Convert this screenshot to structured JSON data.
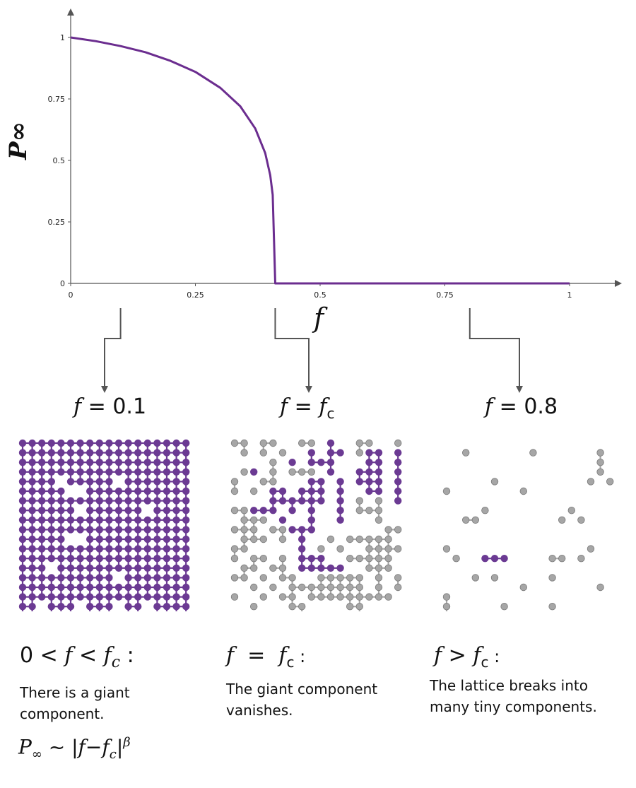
{
  "colors": {
    "curve": "#6b2d8f",
    "giant_node": "#6b3a93",
    "small_node": "#a6a6a6",
    "small_node_stroke": "#7a7a7a",
    "axis": "#555555",
    "arrow": "#555555"
  },
  "chart_data": {
    "type": "line",
    "xlabel": "f",
    "ylabel": "P∞",
    "xlim": [
      0,
      1.1
    ],
    "ylim": [
      0,
      1.05
    ],
    "x_ticks": [
      "0",
      "0.25",
      "0.5",
      "0.75",
      "1"
    ],
    "y_ticks": [
      "0",
      "0.25",
      "0.5",
      "0.75",
      "1"
    ],
    "f_c": 0.41,
    "series": [
      {
        "x": [
          0,
          0.05,
          0.1,
          0.15,
          0.2,
          0.25,
          0.3,
          0.34,
          0.37,
          0.39,
          0.4,
          0.405,
          0.41,
          0.41,
          0.5,
          0.75,
          1.0
        ],
        "y": [
          1.0,
          0.985,
          0.965,
          0.94,
          0.905,
          0.86,
          0.795,
          0.72,
          0.63,
          0.53,
          0.44,
          0.36,
          0.0,
          0.0,
          0.0,
          0.0,
          0.0
        ]
      }
    ]
  },
  "panels": [
    {
      "label_sym": "f",
      "label_rest": " = 0.1",
      "condition": "0 < f < f_c :",
      "cond_parts": [
        "0",
        "<",
        "f",
        "<",
        "f",
        "c",
        ":"
      ],
      "description": [
        "There is a giant",
        "component."
      ],
      "formula": "P∞ ~ |f−f_c|^β"
    },
    {
      "label_sym": "f",
      "label_rest": " = ",
      "label_sub": "c",
      "condition": "f = f_c :",
      "description": [
        "The giant component",
        "vanishes."
      ]
    },
    {
      "label_sym": "f",
      "label_rest": " = 0.8",
      "condition": "f > f_c :",
      "description": [
        "The lattice breaks into",
        "many tiny components."
      ]
    }
  ],
  "lattices": [
    {
      "rows": [
        "111111111111111111",
        "111111111111111111",
        "111111111111111111",
        "111111111111111111",
        "111101111101111111",
        "111110011111111111",
        "111111111111111111",
        "111111011111101111",
        "111111111111111111",
        "111111111111111111",
        "111110011111111111",
        "111111111111111111",
        "111111111111111111",
        "111011111111111111",
        "111111111101111111",
        "111111111111111111",
        "111111111111111111",
        "110111011101101111",
        "111111111111111111"
      ],
      "mode": "all-giant"
    },
    {
      "rows": [
        "220220022010022002",
        "020202001011021101",
        "000020101110001101",
        "021020222010011101",
        "200220001101011101",
        "202011011101001101",
        "000011111101020201",
        "221110101001022200",
        "022201001001000200",
        "222022111000000022",
        "022202010020222220",
        "220000010202002222",
        "202202011100222220",
        "022022011111002220",
        "220202200222220202",
        "002020222222220202",
        "200202202222222220",
        "002000220000220000",
        "220020022002022022"
      ],
      "mode": "mixed"
    },
    {
      "rows": [
        "000000000000000000",
        "002000000200000020",
        "000000000000000020",
        "000000000000000020",
        "000002000000000202",
        "200000002000000000",
        "000000000000000000",
        "000020000000020000",
        "002200000000202000",
        "000000000000000000",
        "000000000000000000",
        "200000000000000200",
        "020011100002202000",
        "000000000000000000",
        "000202000002000000",
        "000000002000000020",
        "200000000000000000",
        "200000200002000000",
        "200002000000020000"
      ],
      "mode": "mixed"
    }
  ]
}
